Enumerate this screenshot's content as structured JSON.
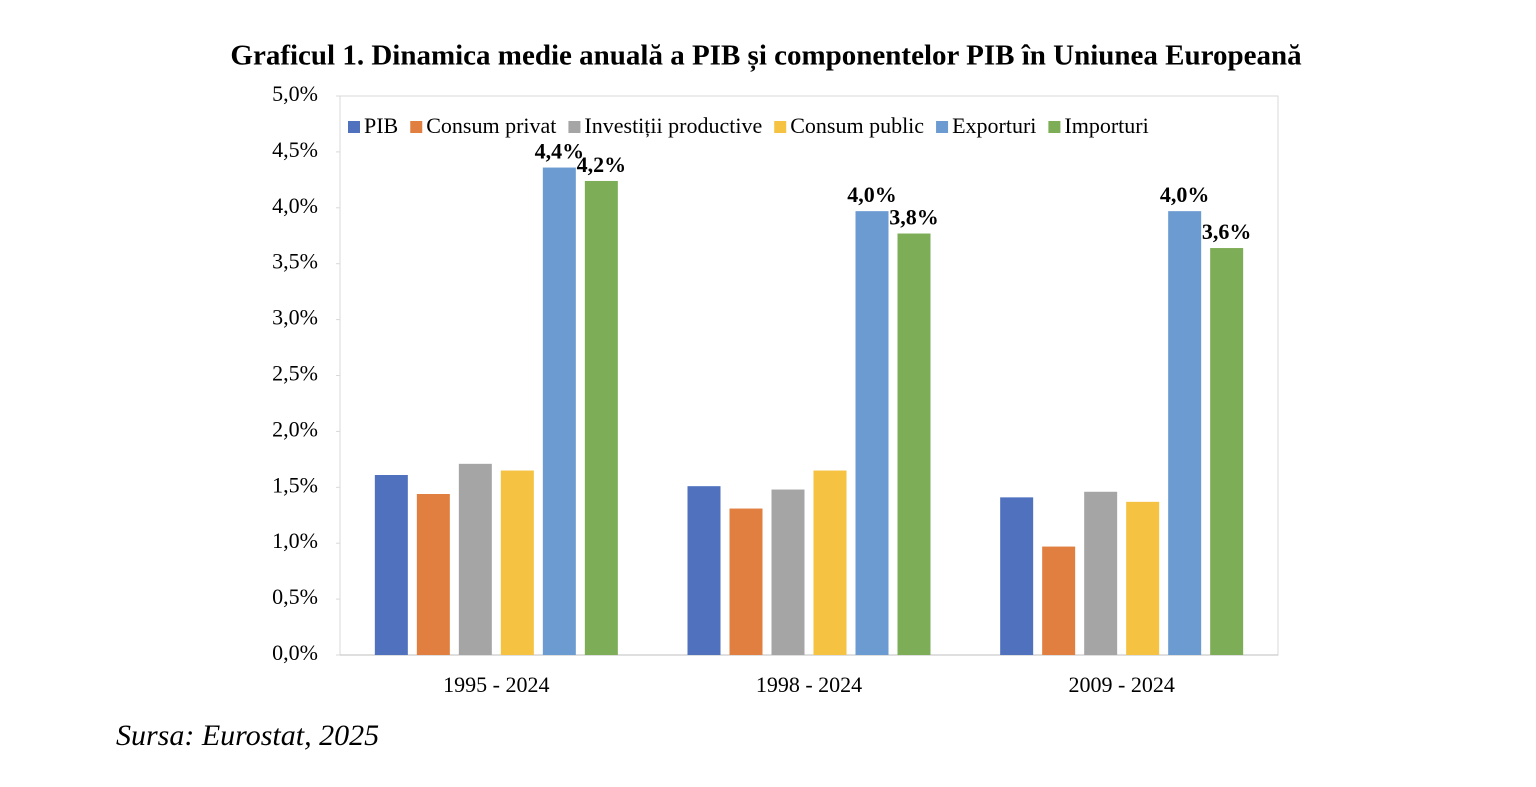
{
  "chart_data": {
    "type": "bar",
    "title": "Graficul 1. Dinamica medie anuală a PIB și componentelor PIB în Uniunea Europeană",
    "categories": [
      "1995 - 2024",
      "1998 - 2024",
      "2009 - 2024"
    ],
    "series": [
      {
        "name": "PIB",
        "color": "#4f71be",
        "values": [
          1.61,
          1.51,
          1.41
        ]
      },
      {
        "name": "Consum privat",
        "color": "#e07f3f",
        "values": [
          1.44,
          1.31,
          0.97
        ]
      },
      {
        "name": "Investiții productive",
        "color": "#a5a5a5",
        "values": [
          1.71,
          1.48,
          1.46
        ]
      },
      {
        "name": "Consum public",
        "color": "#f5c242",
        "values": [
          1.65,
          1.65,
          1.37
        ]
      },
      {
        "name": "Exporturi",
        "color": "#6b9bd1",
        "values": [
          4.36,
          3.97,
          3.97
        ],
        "value_labels": [
          "4,4%",
          "4,0%",
          "4,0%"
        ]
      },
      {
        "name": "Importuri",
        "color": "#7ead57",
        "values": [
          4.24,
          3.77,
          3.64
        ],
        "value_labels": [
          "4,2%",
          "3,8%",
          "3,6%"
        ]
      }
    ],
    "ylim": [
      0,
      5
    ],
    "yticks": [
      {
        "value": 0,
        "label": "0,0%"
      },
      {
        "value": 0.5,
        "label": "0,5%"
      },
      {
        "value": 1,
        "label": "1,0%"
      },
      {
        "value": 1.5,
        "label": "1,5%"
      },
      {
        "value": 2,
        "label": "2,0%"
      },
      {
        "value": 2.5,
        "label": "2,5%"
      },
      {
        "value": 3,
        "label": "3,0%"
      },
      {
        "value": 3.5,
        "label": "3,5%"
      },
      {
        "value": 4,
        "label": "4,0%"
      },
      {
        "value": 4.5,
        "label": "4,5%"
      },
      {
        "value": 5,
        "label": "5,0%"
      }
    ],
    "legend": "top",
    "source": "Sursa: Eurostat, 2025"
  }
}
